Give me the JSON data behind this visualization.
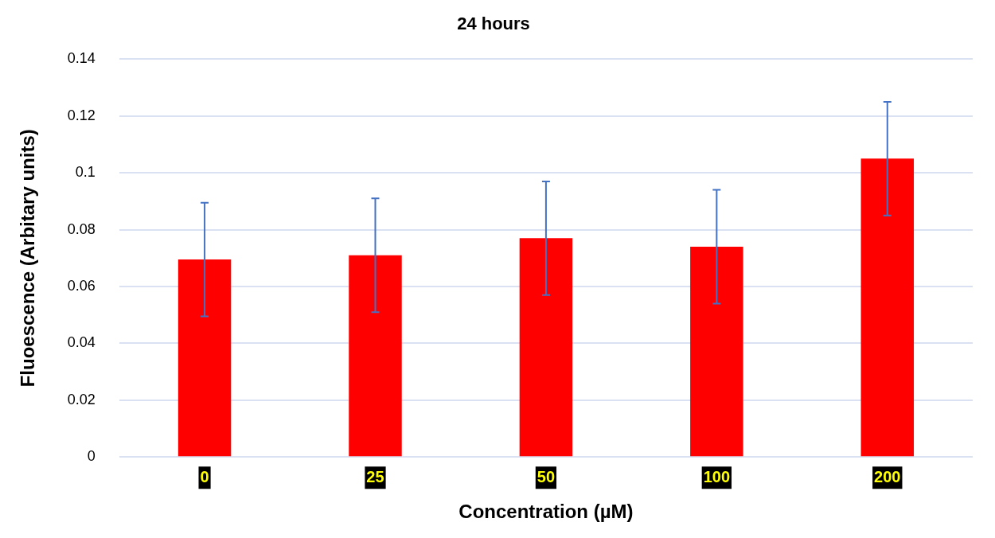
{
  "chart_data": {
    "type": "bar",
    "title": "24 hours",
    "xlabel": "Concentration (µM)",
    "ylabel": "Fluoescence (Arbitary units)",
    "categories": [
      "0",
      "25",
      "50",
      "100",
      "200"
    ],
    "values": [
      0.0695,
      0.071,
      0.077,
      0.074,
      0.105
    ],
    "errors": [
      0.02,
      0.02,
      0.02,
      0.02,
      0.02
    ],
    "color": "#ff0000",
    "ylim": [
      0,
      0.14
    ],
    "yticks": [
      0,
      0.02,
      0.04,
      0.06,
      0.08,
      0.1,
      0.12,
      0.14
    ],
    "grid": "y",
    "legend": false
  }
}
